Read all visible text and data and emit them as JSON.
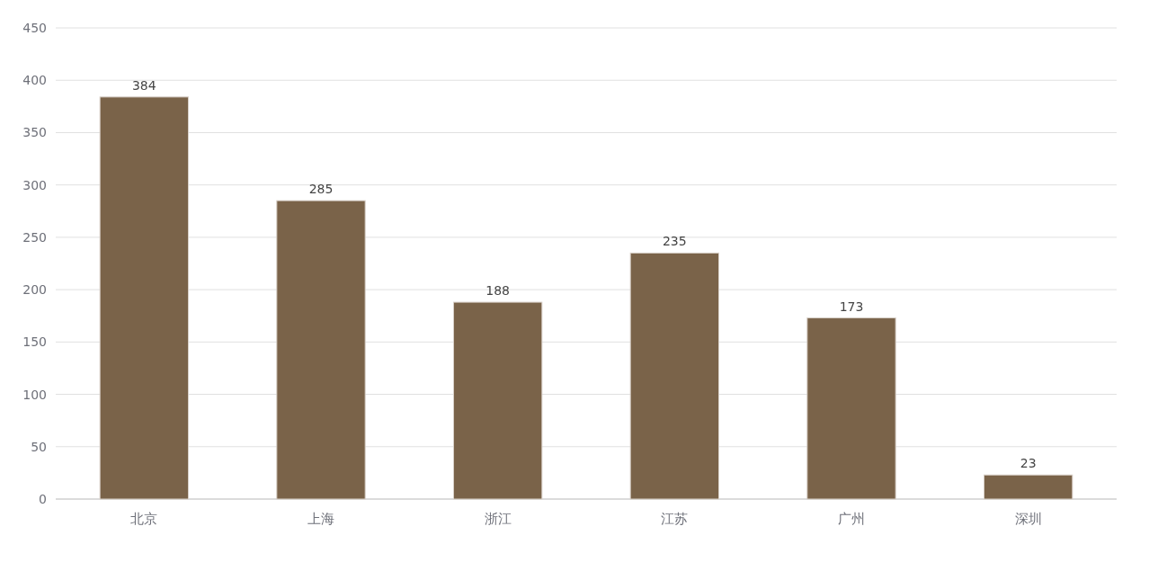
{
  "chart_data": {
    "type": "bar",
    "categories": [
      "北京",
      "上海",
      "浙江",
      "江苏",
      "广州",
      "深圳"
    ],
    "values": [
      384,
      285,
      188,
      235,
      173,
      23
    ],
    "color": "#7a6349",
    "ylim": [
      0,
      450
    ],
    "yticks": [
      0,
      50,
      100,
      150,
      200,
      250,
      300,
      350,
      400,
      450
    ],
    "grid": "y",
    "data_labels": true
  }
}
